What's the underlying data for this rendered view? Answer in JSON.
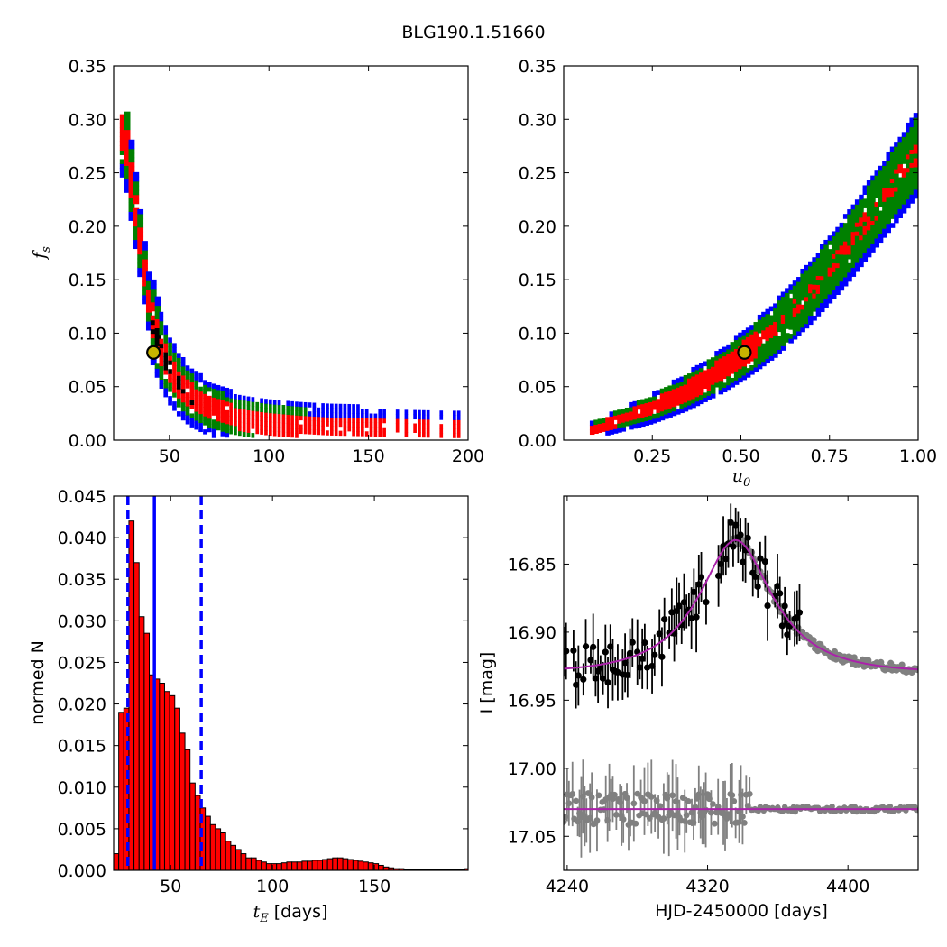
{
  "figure_title": "BLG190.1.51660",
  "colors": {
    "sigma1": "#ff0000",
    "sigma2": "#008000",
    "sigma3": "#0000ff",
    "best": "#000000",
    "median_line": "#0000ff",
    "model": "#aa22aa",
    "data": "#000000",
    "residual": "#808080",
    "marker_face": "#c8b400"
  },
  "chart_data": [
    {
      "id": "fs-vs-tE",
      "type": "heatmap",
      "xlim": [
        22,
        200
      ],
      "ylim": [
        0,
        0.35
      ],
      "xticks": [
        "50",
        "100",
        "150",
        "200"
      ],
      "xtick_values": [
        50,
        100,
        150,
        200
      ],
      "yticks": [
        "0.00",
        "0.05",
        "0.10",
        "0.15",
        "0.20",
        "0.25",
        "0.30",
        "0.35"
      ],
      "ytick_values": [
        0,
        0.05,
        0.1,
        0.15,
        0.2,
        0.25,
        0.3,
        0.35
      ],
      "ylabel_main": "f",
      "ylabel_sub": "s",
      "ridge_x": [
        27,
        30,
        33,
        36,
        40,
        45,
        50,
        55,
        60,
        70,
        80,
        90,
        100,
        115,
        130,
        150,
        170,
        190
      ],
      "ridge_y": [
        0.29,
        0.25,
        0.21,
        0.17,
        0.12,
        0.088,
        0.066,
        0.052,
        0.042,
        0.03,
        0.023,
        0.019,
        0.016,
        0.013,
        0.011,
        0.01,
        0.009,
        0.008
      ],
      "best_fit": {
        "x": 42,
        "y": 0.082
      }
    },
    {
      "id": "fs-vs-u0",
      "type": "heatmap",
      "xlim": [
        0,
        1
      ],
      "ylim": [
        0,
        0.35
      ],
      "xticks": [
        "0.25",
        "0.50",
        "0.75",
        "1.00"
      ],
      "xtick_values": [
        0.25,
        0.5,
        0.75,
        1.0
      ],
      "yticks": [
        "0.00",
        "0.05",
        "0.10",
        "0.15",
        "0.20",
        "0.25",
        "0.30",
        "0.35"
      ],
      "ytick_values": [
        0,
        0.05,
        0.1,
        0.15,
        0.2,
        0.25,
        0.3,
        0.35
      ],
      "xlabel_main": "u",
      "xlabel_sub": "0",
      "ridge_x": [
        0.08,
        0.15,
        0.25,
        0.35,
        0.45,
        0.52,
        0.6,
        0.7,
        0.8,
        0.9,
        1.0
      ],
      "ridge_y": [
        0.01,
        0.018,
        0.03,
        0.046,
        0.066,
        0.083,
        0.105,
        0.14,
        0.18,
        0.225,
        0.27
      ],
      "best_fit": {
        "x": 0.51,
        "y": 0.082
      }
    },
    {
      "id": "tE-histogram",
      "type": "bar",
      "xlim": [
        22,
        196
      ],
      "ylim": [
        0,
        0.045
      ],
      "bin_width": 2.5,
      "bin_start": 22,
      "values": [
        0.002,
        0.019,
        0.0195,
        0.042,
        0.037,
        0.0305,
        0.0285,
        0.0235,
        0.023,
        0.0225,
        0.0215,
        0.021,
        0.0195,
        0.0165,
        0.0145,
        0.0105,
        0.009,
        0.0075,
        0.0065,
        0.0055,
        0.005,
        0.0045,
        0.0035,
        0.003,
        0.0025,
        0.002,
        0.0015,
        0.0015,
        0.0012,
        0.001,
        0.0008,
        0.0008,
        0.0008,
        0.0009,
        0.001,
        0.001,
        0.001,
        0.0011,
        0.0011,
        0.0012,
        0.0012,
        0.0013,
        0.0014,
        0.0015,
        0.0015,
        0.0014,
        0.0013,
        0.0012,
        0.0011,
        0.001,
        0.0009,
        0.0008,
        0.0006,
        0.0004,
        0.0003,
        0.0002,
        0.0002,
        0.0001,
        0.0001,
        0.0001,
        0.0001,
        0.0001,
        0.0001,
        0.0001,
        0.0001,
        0.0001,
        0.0001,
        0.0001,
        0.0001,
        0.0002
      ],
      "median": 42,
      "lower": 29,
      "upper": 65,
      "xticks": [
        "50",
        "100",
        "150"
      ],
      "xtick_values": [
        50,
        100,
        150
      ],
      "yticks": [
        "0.000",
        "0.005",
        "0.010",
        "0.015",
        "0.020",
        "0.025",
        "0.030",
        "0.035",
        "0.040",
        "0.045"
      ],
      "ytick_values": [
        0,
        0.005,
        0.01,
        0.015,
        0.02,
        0.025,
        0.03,
        0.035,
        0.04,
        0.045
      ],
      "xlabel_main": "t",
      "xlabel_sub": "E",
      "xlabel_suffix": " [days]",
      "ylabel": "normed N"
    },
    {
      "id": "light-curve",
      "type": "scatter",
      "xlim": [
        4238,
        4440
      ],
      "ylim": [
        17.075,
        16.8
      ],
      "xticks": [
        "4240",
        "4320",
        "4400"
      ],
      "xtick_values": [
        4240,
        4320,
        4400
      ],
      "yticks": [
        "16.85",
        "16.90",
        "16.95",
        "17.00",
        "17.05"
      ],
      "ytick_values": [
        16.85,
        16.9,
        16.95,
        17.0,
        17.05
      ],
      "xlabel": "HJD-2450000 [days]",
      "ylabel": "I [mag]",
      "model": {
        "t0": 4336,
        "tE": 42,
        "u0": 0.51,
        "fs": 0.082,
        "I_base": 16.93
      },
      "residual_offset": 17.03
    }
  ]
}
